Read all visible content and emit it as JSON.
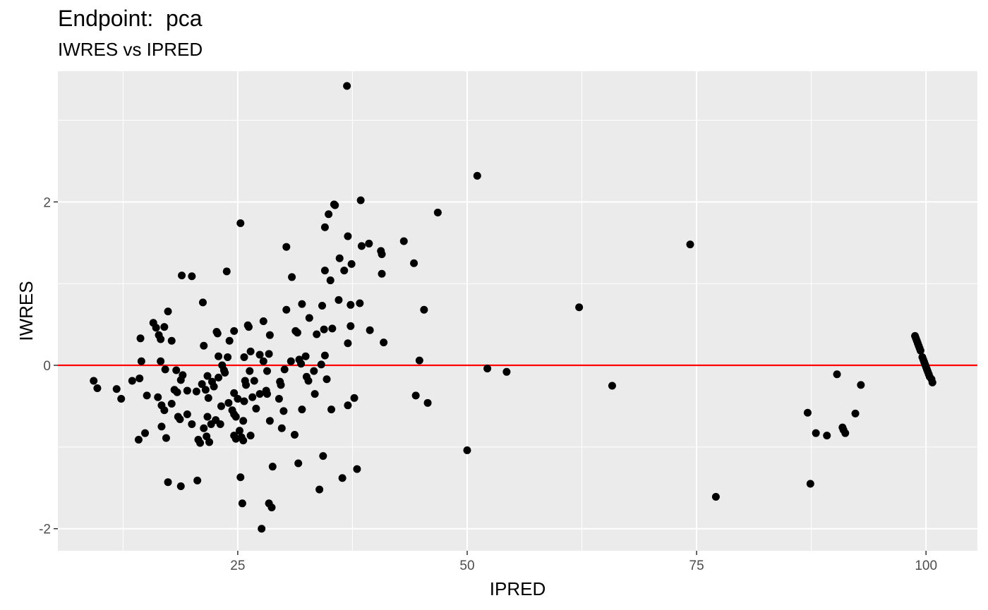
{
  "chart_data": {
    "type": "scatter",
    "title": "Endpoint:  pca",
    "subtitle": "IWRES vs IPRED",
    "xlabel": "IPRED",
    "ylabel": "IWRES",
    "xlim": [
      5.4,
      105.6
    ],
    "ylim": [
      -2.27,
      3.6
    ],
    "x_ticks": [
      25,
      50,
      75,
      100
    ],
    "x_tick_labels": [
      "25",
      "50",
      "75",
      "100"
    ],
    "y_ticks": [
      -2,
      0,
      2
    ],
    "y_tick_labels": [
      "-2",
      "0",
      "2"
    ],
    "grid": true,
    "reference_line": {
      "y": 0,
      "color": "#ff0000"
    },
    "point_color": "#000000",
    "panel_background": "#ebebeb",
    "points": [
      {
        "x": 9.3,
        "y": -0.19
      },
      {
        "x": 9.7,
        "y": -0.28
      },
      {
        "x": 11.8,
        "y": -0.29
      },
      {
        "x": 12.3,
        "y": -0.41
      },
      {
        "x": 13.5,
        "y": -0.19
      },
      {
        "x": 14.2,
        "y": -0.91
      },
      {
        "x": 14.3,
        "y": -0.16
      },
      {
        "x": 14.4,
        "y": 0.33
      },
      {
        "x": 14.5,
        "y": 0.05
      },
      {
        "x": 14.9,
        "y": -0.83
      },
      {
        "x": 15.1,
        "y": -0.37
      },
      {
        "x": 15.8,
        "y": 0.52
      },
      {
        "x": 16.1,
        "y": 0.46
      },
      {
        "x": 16.3,
        "y": -0.39
      },
      {
        "x": 16.4,
        "y": 0.37
      },
      {
        "x": 16.6,
        "y": 0.32
      },
      {
        "x": 16.6,
        "y": 0.05
      },
      {
        "x": 16.7,
        "y": -0.49
      },
      {
        "x": 16.7,
        "y": -0.75
      },
      {
        "x": 17.0,
        "y": 0.47
      },
      {
        "x": 17.0,
        "y": -0.55
      },
      {
        "x": 17.1,
        "y": -0.05
      },
      {
        "x": 17.2,
        "y": -0.89
      },
      {
        "x": 17.4,
        "y": 0.66
      },
      {
        "x": 17.4,
        "y": -1.43
      },
      {
        "x": 17.8,
        "y": 0.3
      },
      {
        "x": 17.8,
        "y": -0.47
      },
      {
        "x": 18.1,
        "y": -0.3
      },
      {
        "x": 18.3,
        "y": -0.06
      },
      {
        "x": 18.4,
        "y": -0.33
      },
      {
        "x": 18.5,
        "y": -0.63
      },
      {
        "x": 18.7,
        "y": -0.66
      },
      {
        "x": 18.8,
        "y": -0.18
      },
      {
        "x": 18.8,
        "y": -1.48
      },
      {
        "x": 18.9,
        "y": 1.1
      },
      {
        "x": 19.0,
        "y": -0.12
      },
      {
        "x": 19.5,
        "y": -0.31
      },
      {
        "x": 19.5,
        "y": -0.6
      },
      {
        "x": 20.0,
        "y": 1.09
      },
      {
        "x": 20.0,
        "y": -0.72
      },
      {
        "x": 20.5,
        "y": -0.32
      },
      {
        "x": 20.6,
        "y": -1.41
      },
      {
        "x": 20.7,
        "y": -0.91
      },
      {
        "x": 20.9,
        "y": -0.95
      },
      {
        "x": 21.1,
        "y": -0.23
      },
      {
        "x": 21.2,
        "y": 0.77
      },
      {
        "x": 21.3,
        "y": -0.77
      },
      {
        "x": 21.3,
        "y": 0.24
      },
      {
        "x": 21.5,
        "y": -0.3
      },
      {
        "x": 21.6,
        "y": -0.87
      },
      {
        "x": 21.7,
        "y": -0.13
      },
      {
        "x": 21.7,
        "y": -0.63
      },
      {
        "x": 21.8,
        "y": -0.4
      },
      {
        "x": 21.9,
        "y": -0.94
      },
      {
        "x": 22.1,
        "y": -0.72
      },
      {
        "x": 22.2,
        "y": -0.2
      },
      {
        "x": 22.4,
        "y": -0.26
      },
      {
        "x": 22.6,
        "y": -0.67
      },
      {
        "x": 22.7,
        "y": 0.41
      },
      {
        "x": 22.8,
        "y": 0.39
      },
      {
        "x": 22.9,
        "y": 0.11
      },
      {
        "x": 22.9,
        "y": -0.15
      },
      {
        "x": 23.1,
        "y": -0.72
      },
      {
        "x": 23.2,
        "y": -0.5
      },
      {
        "x": 23.3,
        "y": 0.0
      },
      {
        "x": 23.5,
        "y": -0.06
      },
      {
        "x": 23.6,
        "y": -0.09
      },
      {
        "x": 23.8,
        "y": 1.15
      },
      {
        "x": 23.9,
        "y": 0.1
      },
      {
        "x": 24.0,
        "y": -0.46
      },
      {
        "x": 24.1,
        "y": 0.3
      },
      {
        "x": 24.4,
        "y": -0.55
      },
      {
        "x": 24.6,
        "y": 0.42
      },
      {
        "x": 24.6,
        "y": -0.34
      },
      {
        "x": 24.6,
        "y": -0.6
      },
      {
        "x": 24.6,
        "y": -0.86
      },
      {
        "x": 24.8,
        "y": -0.63
      },
      {
        "x": 24.8,
        "y": -0.9
      },
      {
        "x": 25.0,
        "y": -0.41
      },
      {
        "x": 25.2,
        "y": -0.8
      },
      {
        "x": 25.3,
        "y": 1.74
      },
      {
        "x": 25.3,
        "y": -1.37
      },
      {
        "x": 25.4,
        "y": -0.88
      },
      {
        "x": 25.5,
        "y": -1.69
      },
      {
        "x": 25.6,
        "y": -0.68
      },
      {
        "x": 25.6,
        "y": -0.92
      },
      {
        "x": 25.7,
        "y": 0.1
      },
      {
        "x": 25.7,
        "y": -0.44
      },
      {
        "x": 25.8,
        "y": -0.19
      },
      {
        "x": 25.9,
        "y": -0.24
      },
      {
        "x": 26.1,
        "y": 0.49
      },
      {
        "x": 26.2,
        "y": 0.47
      },
      {
        "x": 26.3,
        "y": -0.07
      },
      {
        "x": 26.4,
        "y": 0.17
      },
      {
        "x": 26.4,
        "y": -0.86
      },
      {
        "x": 26.6,
        "y": -0.39
      },
      {
        "x": 26.8,
        "y": -0.19
      },
      {
        "x": 27.0,
        "y": -0.53
      },
      {
        "x": 27.4,
        "y": 0.13
      },
      {
        "x": 27.4,
        "y": -0.35
      },
      {
        "x": 27.6,
        "y": -2.0
      },
      {
        "x": 27.8,
        "y": 0.05
      },
      {
        "x": 27.8,
        "y": 0.54
      },
      {
        "x": 28.1,
        "y": -0.31
      },
      {
        "x": 28.2,
        "y": -0.35
      },
      {
        "x": 28.2,
        "y": -0.07
      },
      {
        "x": 28.4,
        "y": 0.14
      },
      {
        "x": 28.4,
        "y": -1.69
      },
      {
        "x": 28.5,
        "y": 0.37
      },
      {
        "x": 28.5,
        "y": -0.68
      },
      {
        "x": 28.7,
        "y": -1.74
      },
      {
        "x": 28.8,
        "y": -1.24
      },
      {
        "x": 29.5,
        "y": -0.41
      },
      {
        "x": 29.6,
        "y": -0.2
      },
      {
        "x": 29.7,
        "y": -0.24
      },
      {
        "x": 29.8,
        "y": -0.77
      },
      {
        "x": 30.0,
        "y": -0.56
      },
      {
        "x": 30.1,
        "y": -0.05
      },
      {
        "x": 30.3,
        "y": 0.68
      },
      {
        "x": 30.3,
        "y": 1.45
      },
      {
        "x": 30.8,
        "y": 0.05
      },
      {
        "x": 30.9,
        "y": 1.08
      },
      {
        "x": 31.2,
        "y": -0.85
      },
      {
        "x": 31.3,
        "y": 0.42
      },
      {
        "x": 31.5,
        "y": 0.4
      },
      {
        "x": 31.6,
        "y": -1.2
      },
      {
        "x": 31.7,
        "y": 0.07
      },
      {
        "x": 31.9,
        "y": 0.02
      },
      {
        "x": 32.0,
        "y": -0.54
      },
      {
        "x": 32.0,
        "y": 0.75
      },
      {
        "x": 32.4,
        "y": 0.11
      },
      {
        "x": 32.5,
        "y": -0.14
      },
      {
        "x": 32.7,
        "y": -0.19
      },
      {
        "x": 32.8,
        "y": 0.58
      },
      {
        "x": 33.3,
        "y": -0.07
      },
      {
        "x": 33.4,
        "y": -0.35
      },
      {
        "x": 33.6,
        "y": 0.38
      },
      {
        "x": 33.9,
        "y": -1.52
      },
      {
        "x": 34.1,
        "y": 0.01
      },
      {
        "x": 34.2,
        "y": 0.73
      },
      {
        "x": 34.3,
        "y": -1.11
      },
      {
        "x": 34.4,
        "y": 0.44
      },
      {
        "x": 34.5,
        "y": 1.69
      },
      {
        "x": 34.5,
        "y": 1.16
      },
      {
        "x": 34.5,
        "y": 0.12
      },
      {
        "x": 34.7,
        "y": -0.17
      },
      {
        "x": 34.9,
        "y": 1.85
      },
      {
        "x": 35.1,
        "y": 1.04
      },
      {
        "x": 35.2,
        "y": -0.54
      },
      {
        "x": 35.3,
        "y": 0.45
      },
      {
        "x": 35.5,
        "y": 1.97
      },
      {
        "x": 35.6,
        "y": 1.96
      },
      {
        "x": 36.0,
        "y": 0.8
      },
      {
        "x": 36.1,
        "y": 1.31
      },
      {
        "x": 36.4,
        "y": -1.38
      },
      {
        "x": 36.6,
        "y": 1.16
      },
      {
        "x": 36.9,
        "y": 3.42
      },
      {
        "x": 37.0,
        "y": 1.58
      },
      {
        "x": 37.0,
        "y": -0.49
      },
      {
        "x": 37.0,
        "y": 0.27
      },
      {
        "x": 37.3,
        "y": 0.74
      },
      {
        "x": 37.3,
        "y": 0.48
      },
      {
        "x": 37.4,
        "y": 1.24
      },
      {
        "x": 37.7,
        "y": -0.4
      },
      {
        "x": 38.0,
        "y": -1.27
      },
      {
        "x": 38.3,
        "y": 0.76
      },
      {
        "x": 38.4,
        "y": 2.02
      },
      {
        "x": 38.5,
        "y": 1.46
      },
      {
        "x": 39.3,
        "y": 1.49
      },
      {
        "x": 39.4,
        "y": 0.43
      },
      {
        "x": 40.6,
        "y": 1.4
      },
      {
        "x": 40.7,
        "y": 1.36
      },
      {
        "x": 40.7,
        "y": 1.12
      },
      {
        "x": 40.9,
        "y": 0.28
      },
      {
        "x": 43.1,
        "y": 1.52
      },
      {
        "x": 44.2,
        "y": 1.25
      },
      {
        "x": 44.4,
        "y": -0.37
      },
      {
        "x": 44.8,
        "y": 0.06
      },
      {
        "x": 45.3,
        "y": 0.68
      },
      {
        "x": 45.7,
        "y": -0.46
      },
      {
        "x": 46.8,
        "y": 1.87
      },
      {
        "x": 50.0,
        "y": -1.04
      },
      {
        "x": 51.1,
        "y": 2.32
      },
      {
        "x": 52.2,
        "y": -0.04
      },
      {
        "x": 54.3,
        "y": -0.08
      },
      {
        "x": 62.2,
        "y": 0.71
      },
      {
        "x": 65.8,
        "y": -0.25
      },
      {
        "x": 74.3,
        "y": 1.48
      },
      {
        "x": 77.1,
        "y": -1.61
      },
      {
        "x": 87.1,
        "y": -0.58
      },
      {
        "x": 87.4,
        "y": -1.45
      },
      {
        "x": 88.0,
        "y": -0.83
      },
      {
        "x": 89.2,
        "y": -0.86
      },
      {
        "x": 90.3,
        "y": -0.11
      },
      {
        "x": 90.9,
        "y": -0.76
      },
      {
        "x": 91.0,
        "y": -0.79
      },
      {
        "x": 91.2,
        "y": -0.83
      },
      {
        "x": 92.3,
        "y": -0.59
      },
      {
        "x": 92.9,
        "y": -0.24
      },
      {
        "x": 98.8,
        "y": 0.36
      },
      {
        "x": 98.9,
        "y": 0.33
      },
      {
        "x": 99.0,
        "y": 0.3
      },
      {
        "x": 99.1,
        "y": 0.27
      },
      {
        "x": 99.2,
        "y": 0.24
      },
      {
        "x": 99.3,
        "y": 0.21
      },
      {
        "x": 99.4,
        "y": 0.18
      },
      {
        "x": 99.6,
        "y": 0.1
      },
      {
        "x": 99.7,
        "y": 0.07
      },
      {
        "x": 99.8,
        "y": 0.04
      },
      {
        "x": 99.9,
        "y": 0.01
      },
      {
        "x": 100.0,
        "y": -0.02
      },
      {
        "x": 100.1,
        "y": -0.05
      },
      {
        "x": 100.2,
        "y": -0.08
      },
      {
        "x": 100.3,
        "y": -0.11
      },
      {
        "x": 100.4,
        "y": -0.14
      },
      {
        "x": 100.6,
        "y": -0.17
      },
      {
        "x": 100.7,
        "y": -0.21
      }
    ]
  }
}
